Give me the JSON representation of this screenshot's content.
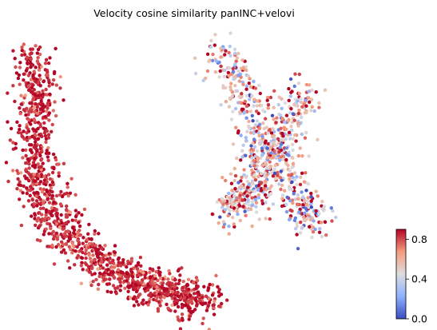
{
  "chart_data": {
    "type": "scatter",
    "title": "Velocity cosine similarity panINC+velovi",
    "xlabel": "",
    "ylabel": "",
    "grid": false,
    "colormap": "coolwarm",
    "color_range": [
      0.0,
      0.9
    ],
    "colorbar": {
      "ticks": [
        0.0,
        0.4,
        0.8
      ],
      "tick_labels": [
        "0.0",
        "0.4",
        "0.8"
      ],
      "placement": "bottom-right"
    },
    "groups": [
      {
        "region": "left-arc",
        "typical_similarity": 0.85,
        "approx_points": 1300,
        "path": [
          [
            -8.4,
            9.0
          ],
          [
            -8.0,
            6.5
          ],
          [
            -8.3,
            4.0
          ],
          [
            -8.0,
            1.5
          ],
          [
            -7.0,
            -0.5
          ],
          [
            -5.5,
            -2.0
          ],
          [
            -4.0,
            -3.0
          ],
          [
            -2.5,
            -3.6
          ],
          [
            -1.0,
            -4.2
          ],
          [
            0.5,
            -4.5
          ]
        ]
      },
      {
        "region": "right-x-shape",
        "typical_similarity": 0.55,
        "approx_points": 900,
        "path": [
          [
            1.0,
            9.5
          ],
          [
            2.5,
            6.5
          ],
          [
            3.5,
            4.0
          ],
          [
            3.0,
            1.5
          ],
          [
            1.5,
            0.5
          ],
          [
            5.5,
            7.0
          ],
          [
            4.0,
            4.0
          ],
          [
            5.0,
            1.0
          ],
          [
            6.0,
            -0.5
          ]
        ]
      }
    ],
    "notes": "Axes hidden (no ticks or labels shown)."
  }
}
